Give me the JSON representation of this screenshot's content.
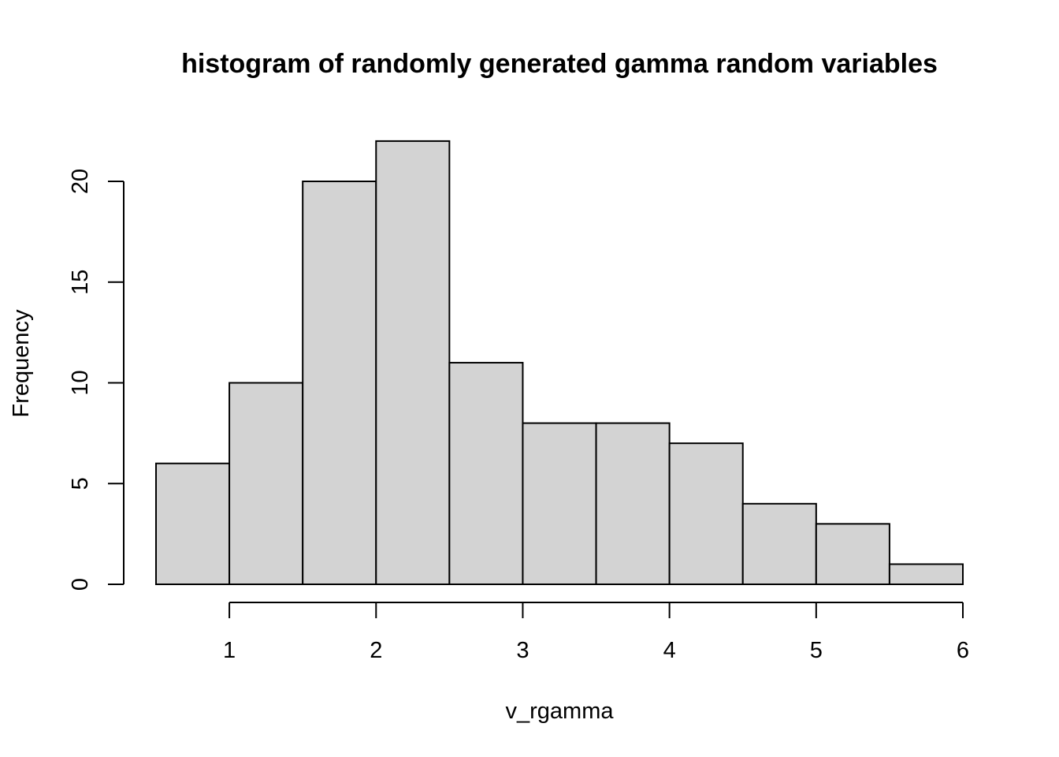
{
  "chart_data": {
    "type": "bar",
    "title": "histogram of randomly generated gamma random variables",
    "xlabel": "v_rgamma",
    "ylabel": "Frequency",
    "bins": [
      {
        "from": 0.5,
        "to": 1.0,
        "count": 6
      },
      {
        "from": 1.0,
        "to": 1.5,
        "count": 10
      },
      {
        "from": 1.5,
        "to": 2.0,
        "count": 20
      },
      {
        "from": 2.0,
        "to": 2.5,
        "count": 22
      },
      {
        "from": 2.5,
        "to": 3.0,
        "count": 11
      },
      {
        "from": 3.0,
        "to": 3.5,
        "count": 8
      },
      {
        "from": 3.5,
        "to": 4.0,
        "count": 8
      },
      {
        "from": 4.0,
        "to": 4.5,
        "count": 7
      },
      {
        "from": 4.5,
        "to": 5.0,
        "count": 4
      },
      {
        "from": 5.0,
        "to": 5.5,
        "count": 3
      },
      {
        "from": 5.5,
        "to": 6.0,
        "count": 1
      }
    ],
    "xticks": [
      1,
      2,
      3,
      4,
      5,
      6
    ],
    "yticks": [
      0,
      5,
      10,
      15,
      20
    ],
    "xlim": [
      0.5,
      6
    ],
    "ylim": [
      0,
      22
    ],
    "grid": false,
    "bar_color": "#d3d3d3",
    "edge_color": "#000000"
  }
}
